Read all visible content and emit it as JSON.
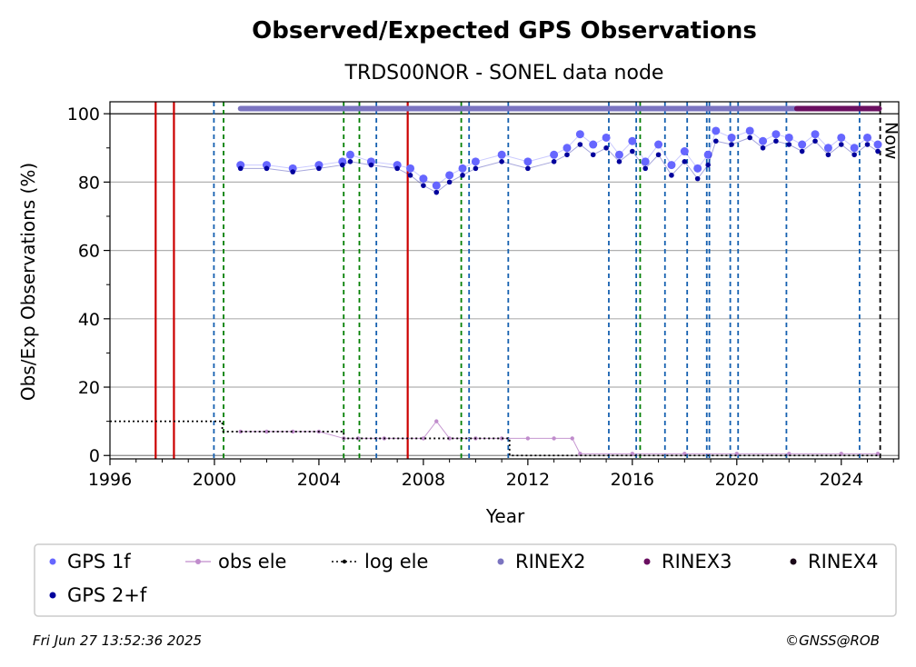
{
  "chart_data": {
    "type": "scatter",
    "title": "Observed/Expected GPS Observations",
    "subtitle": "TRDS00NOR - SONEL data node",
    "xlabel": "Year",
    "ylabel": "Obs/Exp Observations (%)",
    "xlim": [
      1996,
      2026.2
    ],
    "ylim": [
      -1,
      103.5
    ],
    "x_ticks": [
      "1996",
      "2000",
      "2004",
      "2008",
      "2012",
      "2016",
      "2020",
      "2024"
    ],
    "y_ticks": [
      "0",
      "20",
      "40",
      "60",
      "80",
      "100"
    ],
    "grid": "horizontal",
    "now_label": "Now",
    "now_year": 2025.49,
    "red_events": [
      1997.75,
      1998.45,
      2007.4
    ],
    "green_events": [
      2000.35,
      2004.95,
      2005.55,
      2009.45,
      2016.3
    ],
    "blue_events": [
      1999.98,
      2006.2,
      2009.75,
      2011.25,
      2015.1,
      2016.15,
      2017.25,
      2018.1,
      2018.85,
      2018.95,
      2019.75,
      2020.05,
      2021.9,
      2024.7
    ],
    "series": [
      {
        "name": "GPS 1f",
        "color": "#6666ff",
        "x": [
          2001.0,
          2002.0,
          2003.0,
          2004.0,
          2004.9,
          2005.2,
          2006.0,
          2007.0,
          2007.5,
          2008.0,
          2008.5,
          2009.0,
          2009.5,
          2010.0,
          2011.0,
          2012.0,
          2013.0,
          2013.5,
          2014.0,
          2014.5,
          2015.0,
          2015.5,
          2016.0,
          2016.5,
          2017.0,
          2017.5,
          2018.0,
          2018.5,
          2018.9,
          2019.2,
          2019.8,
          2020.5,
          2021.0,
          2021.5,
          2022.0,
          2022.5,
          2023.0,
          2023.5,
          2024.0,
          2024.5,
          2025.0,
          2025.4
        ],
        "y": [
          85,
          85,
          84,
          85,
          86,
          88,
          86,
          85,
          84,
          81,
          79,
          82,
          84,
          86,
          88,
          86,
          88,
          90,
          94,
          91,
          93,
          88,
          92,
          86,
          91,
          85,
          89,
          84,
          88,
          95,
          93,
          95,
          92,
          94,
          93,
          91,
          94,
          90,
          93,
          90,
          93,
          91
        ]
      },
      {
        "name": "GPS 2+f",
        "color": "#00009c",
        "x": [
          2001.0,
          2002.0,
          2003.0,
          2004.0,
          2004.9,
          2005.2,
          2006.0,
          2007.0,
          2007.5,
          2008.0,
          2008.5,
          2009.0,
          2009.5,
          2010.0,
          2011.0,
          2012.0,
          2013.0,
          2013.5,
          2014.0,
          2014.5,
          2015.0,
          2015.5,
          2016.0,
          2016.5,
          2017.0,
          2017.5,
          2018.0,
          2018.5,
          2018.9,
          2019.2,
          2019.8,
          2020.5,
          2021.0,
          2021.5,
          2022.0,
          2022.5,
          2023.0,
          2023.5,
          2024.0,
          2024.5,
          2025.0,
          2025.4
        ],
        "y": [
          84,
          84,
          83,
          84,
          85,
          86,
          85,
          84,
          82,
          79,
          77,
          80,
          82,
          84,
          86,
          84,
          86,
          88,
          91,
          88,
          90,
          86,
          89,
          84,
          88,
          82,
          86,
          81,
          85,
          92,
          91,
          93,
          90,
          92,
          91,
          89,
          92,
          88,
          91,
          88,
          91,
          89
        ]
      },
      {
        "name": "obs ele",
        "color": "#c08ccc",
        "x": [
          2001.0,
          2002.0,
          2003.0,
          2004.0,
          2004.95,
          2005.5,
          2006.5,
          2008.0,
          2008.5,
          2009.0,
          2010.0,
          2011.0,
          2012.0,
          2013.0,
          2013.7,
          2014.0,
          2016.0,
          2018.0,
          2020.0,
          2022.0,
          2024.0,
          2025.4
        ],
        "y": [
          7,
          7,
          7,
          7,
          5,
          5,
          5,
          5,
          10,
          5,
          5,
          5,
          5,
          5,
          5,
          0.5,
          0.5,
          0.5,
          0.5,
          0.5,
          0.5,
          0.5
        ]
      },
      {
        "name": "log ele",
        "color": "#000000",
        "x": [
          1996.0,
          2000.3,
          2000.3,
          2004.95,
          2004.95,
          2011.3,
          2011.3,
          2025.5
        ],
        "y": [
          10,
          10,
          7,
          7,
          5,
          5,
          0,
          0
        ]
      },
      {
        "name": "RINEX2",
        "color": "#7b74c0",
        "x": [
          2001.0,
          2022.3
        ],
        "y": [
          101.5,
          101.5
        ]
      },
      {
        "name": "RINEX3",
        "color": "#6a0f60",
        "x": [
          2022.3,
          2025.45
        ],
        "y": [
          101.5,
          101.5
        ]
      },
      {
        "name": "RINEX4",
        "color": "#1a0818",
        "x": [],
        "y": []
      }
    ],
    "legend": "bottom"
  },
  "footer": {
    "timestamp": "Fri Jun 27 13:52:36 2025",
    "credit": "©GNSS@ROB"
  }
}
